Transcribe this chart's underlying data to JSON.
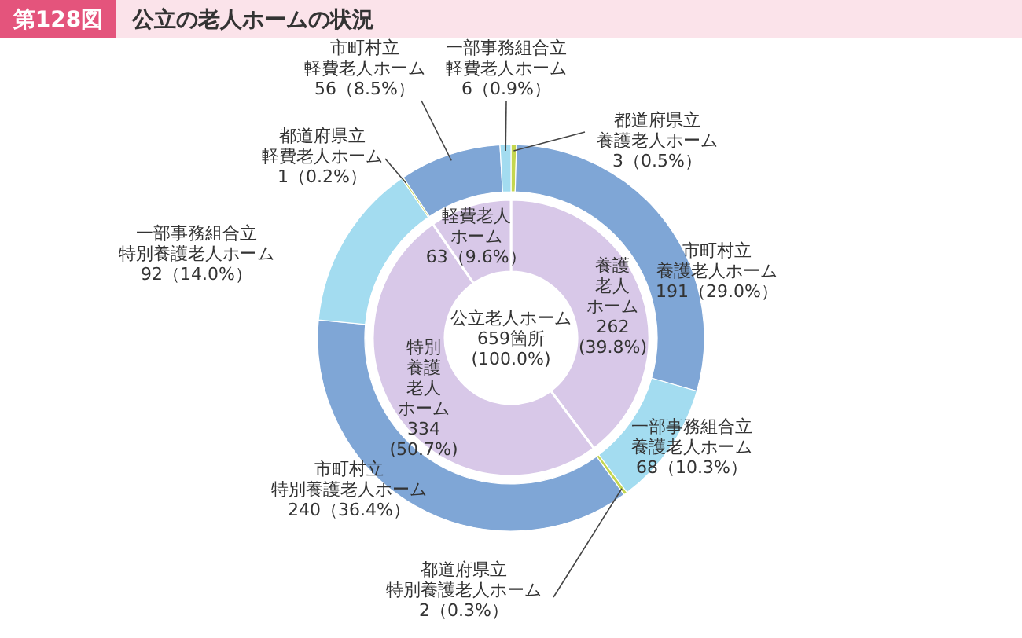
{
  "chart_data": [
    {
      "type": "donut",
      "title": "公立の老人ホームの状況",
      "subtitle": "第128図",
      "categories": [
        "都道府県立養護老人ホーム",
        "市町村立養護老人ホーム",
        "一部事務組合立養護老人ホーム",
        "都道府県立特別養護老人ホーム",
        "市町村立特別養護老人ホーム",
        "一部事務組合立特別養護老人ホーム",
        "都道府県立軽費老人ホーム",
        "市町村立軽費老人ホーム",
        "一部事務組合立軽費老人ホーム"
      ],
      "values": [
        3,
        191,
        68,
        2,
        240,
        92,
        1,
        56,
        6
      ],
      "colors": [
        "#c5d64f",
        "#7fa6d6",
        "#a3dcf0",
        "#c5d64f",
        "#7fa6d6",
        "#a3dcf0",
        "#c5d64f",
        "#7fa6d6",
        "#a3dcf0"
      ],
      "value_labels": [
        "3（0.5%）",
        "191（29.0%）",
        "68（10.3%）",
        "2（0.3%）",
        "240（36.4%）",
        "92（14.0%）",
        "1（0.2%）",
        "56（8.5%）",
        "6（0.9%）"
      ]
    },
    {
      "type": "donut",
      "categories": [
        "養護老人ホーム",
        "特別養護老人ホーム",
        "軽費老人ホーム"
      ],
      "values": [
        262,
        334,
        63
      ],
      "colors": [
        "#d8c8e8",
        "#d8c8e8",
        "#d8c8e8"
      ],
      "value_labels": [
        "262\n(39.8%)",
        "334\n(50.7%)",
        "63（9.6%）"
      ],
      "annotations": [
        "公立老人ホーム\n659箇所\n(100.0%)"
      ]
    }
  ]
}
